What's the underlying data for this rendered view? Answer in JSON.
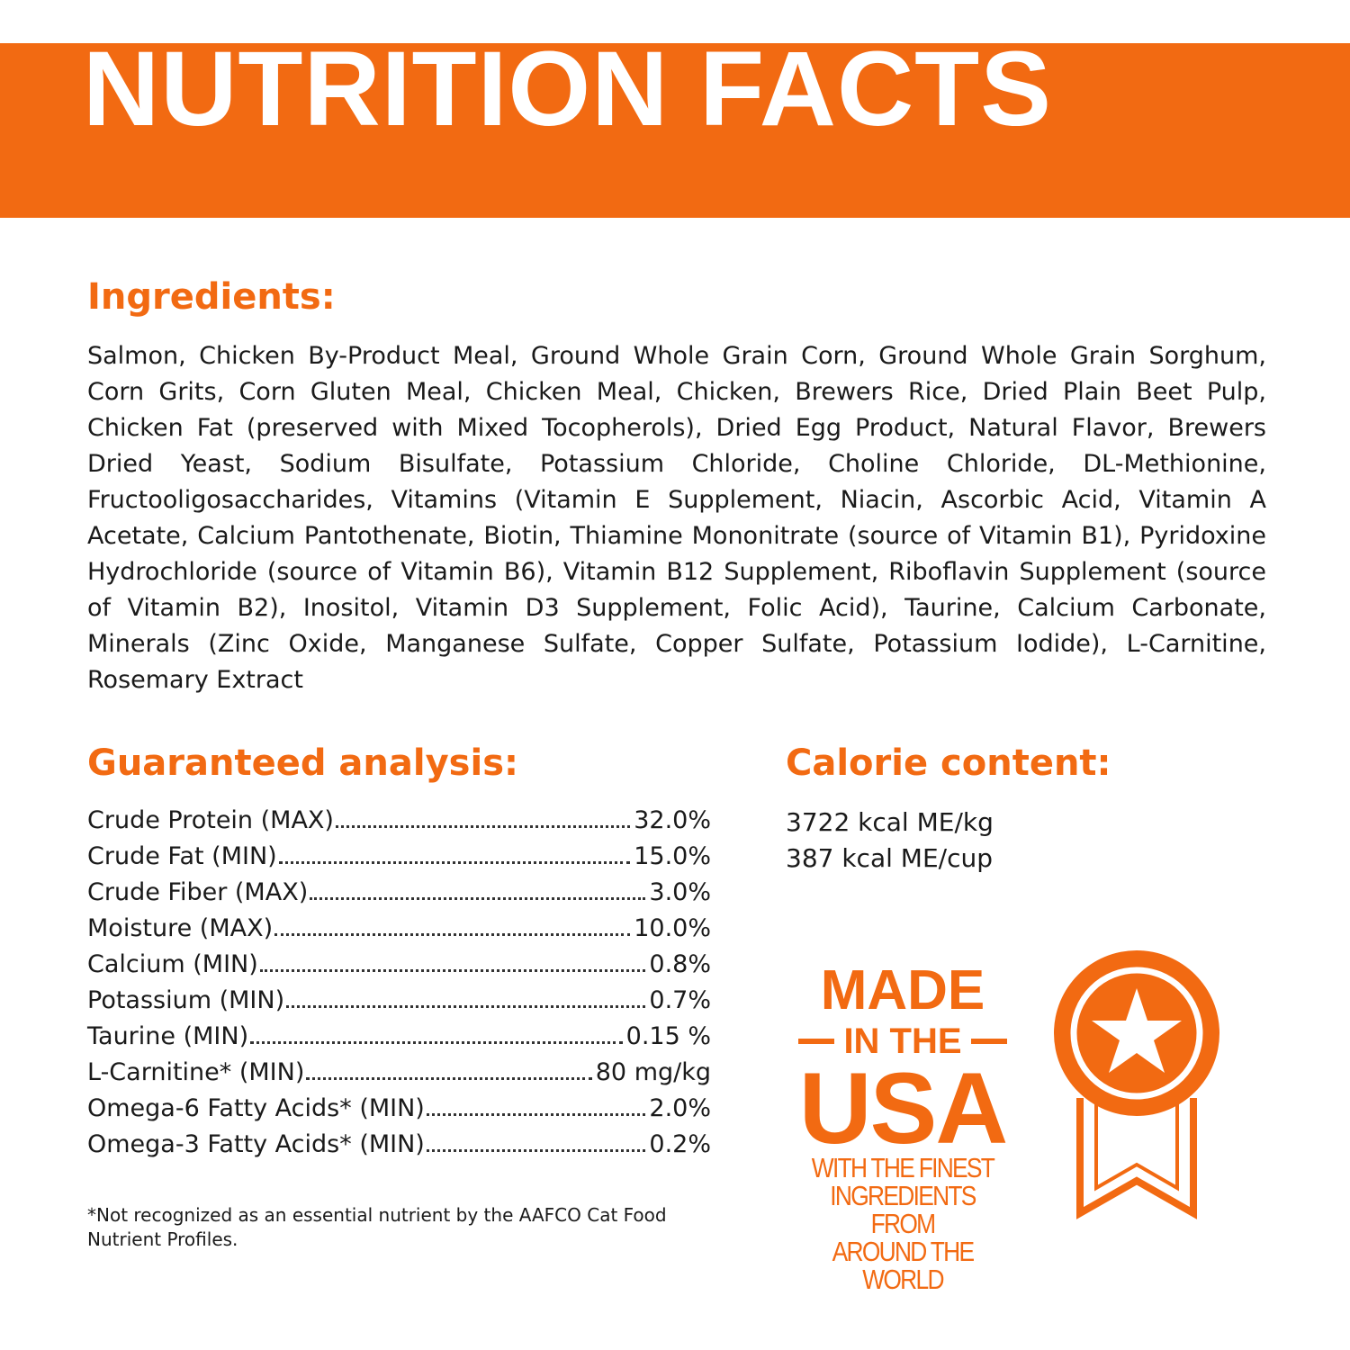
{
  "header": {
    "title": "NUTRITION FACTS"
  },
  "ingredients": {
    "heading": "Ingredients:",
    "text": "Salmon, Chicken By-Product Meal, Ground Whole Grain Corn, Ground Whole Grain Sorghum, Corn Grits, Corn Gluten Meal, Chicken Meal, Chicken, Brewers Rice, Dried Plain Beet Pulp, Chicken Fat (preserved with Mixed Tocopherols), Dried Egg Product, Natural Flavor, Brewers Dried Yeast, Sodium Bisulfate, Potassium Chloride, Choline Chloride, DL-Methionine, Fructooligosaccharides, Vitamins (Vitamin E Supplement, Niacin, Ascorbic Acid, Vitamin A Acetate, Calcium Pantothenate, Biotin, Thiamine Mononitrate (source of Vitamin B1), Pyridoxine Hydrochloride (source of Vitamin B6), Vitamin B12 Supplement, Riboflavin Supplement (source of Vitamin B2), Inositol, Vitamin D3 Supplement, Folic Acid), Taurine, Calcium Carbonate, Minerals (Zinc Oxide, Manganese Sulfate, Copper Sulfate, Potassium Iodide), L-Carnitine, Rosemary Extract"
  },
  "analysis": {
    "heading": "Guaranteed analysis:",
    "rows": [
      {
        "name": "Crude Protein (MAX)",
        "value": "32.0%"
      },
      {
        "name": "Crude Fat (MIN)",
        "value": "15.0%"
      },
      {
        "name": "Crude Fiber (MAX)",
        "value": "3.0%"
      },
      {
        "name": "Moisture (MAX)",
        "value": "10.0%"
      },
      {
        "name": "Calcium (MIN)",
        "value": "0.8%"
      },
      {
        "name": "Potassium (MIN)",
        "value": "0.7%"
      },
      {
        "name": "Taurine (MIN)",
        "value": "0.15 %"
      },
      {
        "name": "L-Carnitine* (MIN)",
        "value": "80 mg/kg"
      },
      {
        "name": "Omega-6 Fatty Acids* (MIN)",
        "value": "2.0%"
      },
      {
        "name": "Omega-3 Fatty Acids* (MIN)",
        "value": "0.2%"
      }
    ],
    "footnote": "*Not recognized as an essential nutrient by the AAFCO Cat Food Nutrient Profiles."
  },
  "calorie": {
    "heading": "Calorie content:",
    "lines": [
      "3722 kcal ME/kg",
      "387 kcal ME/cup"
    ]
  },
  "badge": {
    "lines": [
      "MADE",
      "IN THE",
      "USA"
    ],
    "tagline": [
      "WITH THE FINEST",
      "INGREDIENTS FROM",
      "AROUND THE WORLD"
    ]
  }
}
